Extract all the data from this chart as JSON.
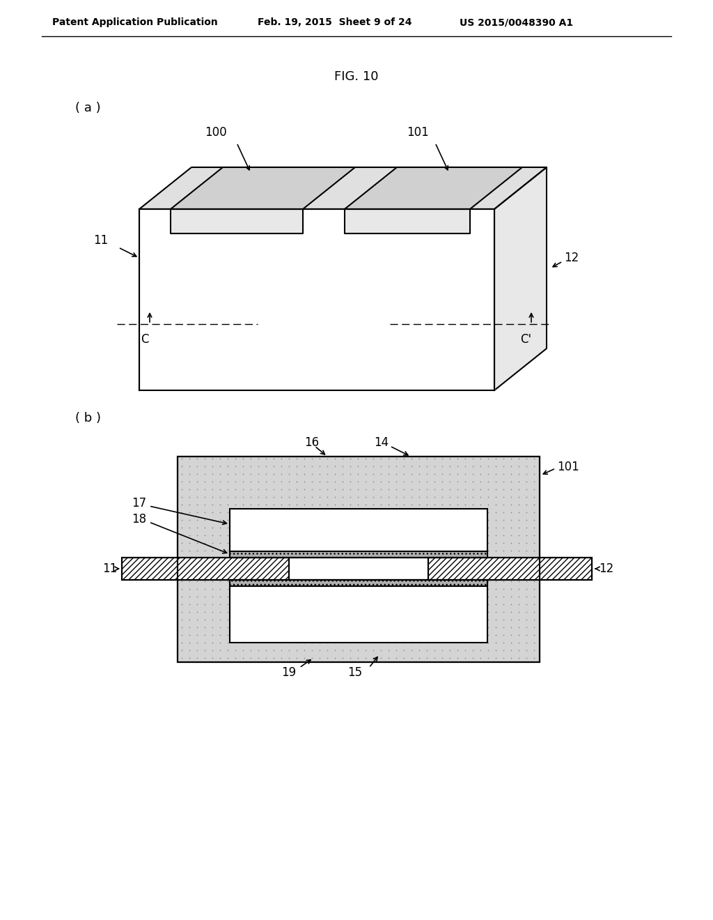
{
  "header_left": "Patent Application Publication",
  "header_mid": "Feb. 19, 2015  Sheet 9 of 24",
  "header_right": "US 2015/0048390 A1",
  "fig_title": "FIG. 10",
  "bg_color": "#ffffff",
  "line_color": "#000000",
  "hatch_color": "#000000",
  "dot_fill_color": "#d4d4d4",
  "white_fill": "#ffffff",
  "light_gray": "#e0e0e0",
  "gray_strip": "#b0b0b0"
}
